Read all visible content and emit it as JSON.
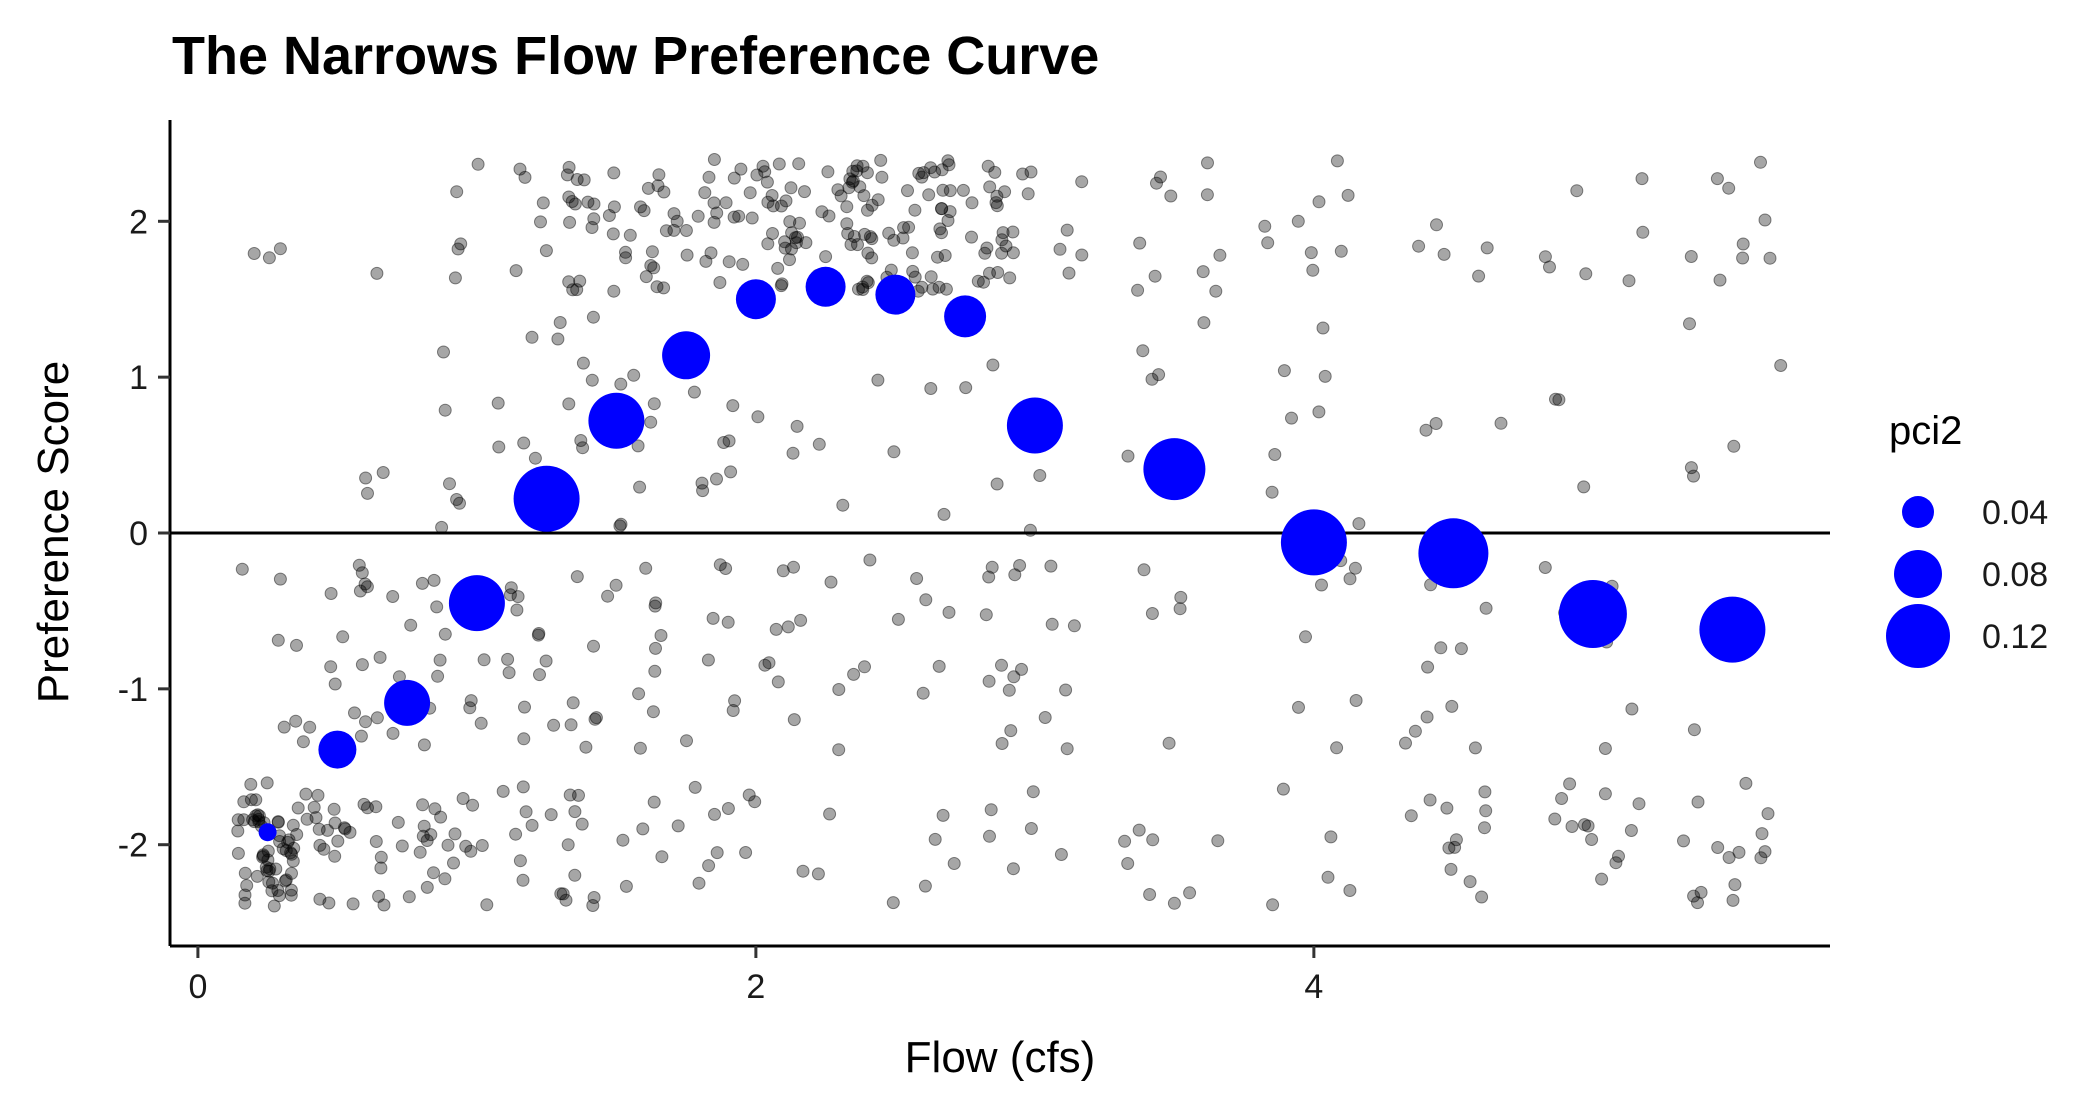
{
  "chart_data": {
    "type": "scatter",
    "title": "The Narrows Flow Preference Curve",
    "xlabel": "Flow (cfs)",
    "ylabel": "Preference Score",
    "xlim": [
      -0.1,
      5.85
    ],
    "ylim": [
      -2.65,
      2.65
    ],
    "xticks": [
      0,
      2,
      4
    ],
    "yticks": [
      -2,
      -1,
      0,
      1,
      2
    ],
    "hline": 0,
    "grid": false,
    "legend": {
      "title": "pci2",
      "placement": "right",
      "entries": [
        {
          "label": "0.04",
          "size_value": 0.04
        },
        {
          "label": "0.08",
          "size_value": 0.08
        },
        {
          "label": "0.12",
          "size_value": 0.12
        }
      ]
    },
    "colors": {
      "summary_points": "#0000ff",
      "raw_points": "#000000",
      "raw_points_opacity": 0.35,
      "reference_line": "#000000"
    },
    "series": [
      {
        "kind": "summary",
        "x": [
          0.25,
          0.5,
          0.75,
          1.0,
          1.25,
          1.5,
          1.75,
          2.0,
          2.25,
          2.5,
          2.75,
          3.0,
          3.5,
          4.0,
          4.5,
          5.0,
          5.5
        ],
        "y": [
          -1.92,
          -1.39,
          -1.09,
          -0.45,
          0.22,
          0.72,
          1.14,
          1.5,
          1.58,
          1.53,
          1.39,
          0.69,
          0.41,
          -0.06,
          -0.13,
          -0.52,
          -0.62
        ],
        "pci2": [
          0.005,
          0.055,
          0.075,
          0.1,
          0.125,
          0.1,
          0.08,
          0.06,
          0.06,
          0.06,
          0.065,
          0.1,
          0.115,
          0.125,
          0.135,
          0.13,
          0.125
        ]
      },
      {
        "kind": "raw",
        "groups": [
          {
            "x": 0.25,
            "n": 65,
            "mix": [
              0.02,
              0.03,
              0.15,
              0.8
            ]
          },
          {
            "x": 0.5,
            "n": 40,
            "mix": [
              0.03,
              0.05,
              0.3,
              0.62
            ]
          },
          {
            "x": 0.75,
            "n": 35,
            "mix": [
              0.03,
              0.1,
              0.4,
              0.47
            ]
          },
          {
            "x": 1.0,
            "n": 38,
            "mix": [
              0.06,
              0.16,
              0.4,
              0.38
            ]
          },
          {
            "x": 1.25,
            "n": 45,
            "mix": [
              0.28,
              0.22,
              0.3,
              0.2
            ]
          },
          {
            "x": 1.5,
            "n": 50,
            "mix": [
              0.4,
              0.24,
              0.2,
              0.16
            ]
          },
          {
            "x": 1.75,
            "n": 45,
            "mix": [
              0.52,
              0.18,
              0.18,
              0.12
            ]
          },
          {
            "x": 2.0,
            "n": 44,
            "mix": [
              0.64,
              0.12,
              0.15,
              0.09
            ]
          },
          {
            "x": 2.25,
            "n": 52,
            "mix": [
              0.7,
              0.1,
              0.12,
              0.08
            ]
          },
          {
            "x": 2.5,
            "n": 50,
            "mix": [
              0.7,
              0.1,
              0.12,
              0.08
            ]
          },
          {
            "x": 2.75,
            "n": 45,
            "mix": [
              0.66,
              0.12,
              0.14,
              0.08
            ]
          },
          {
            "x": 3.0,
            "n": 36,
            "mix": [
              0.46,
              0.18,
              0.24,
              0.12
            ]
          },
          {
            "x": 3.5,
            "n": 30,
            "mix": [
              0.42,
              0.2,
              0.18,
              0.2
            ]
          },
          {
            "x": 4.0,
            "n": 30,
            "mix": [
              0.3,
              0.2,
              0.25,
              0.25
            ]
          },
          {
            "x": 4.5,
            "n": 30,
            "mix": [
              0.3,
              0.14,
              0.26,
              0.3
            ]
          },
          {
            "x": 5.0,
            "n": 30,
            "mix": [
              0.24,
              0.14,
              0.22,
              0.4
            ]
          },
          {
            "x": 5.5,
            "n": 30,
            "mix": [
              0.26,
              0.12,
              0.16,
              0.46
            ]
          }
        ]
      }
    ]
  }
}
